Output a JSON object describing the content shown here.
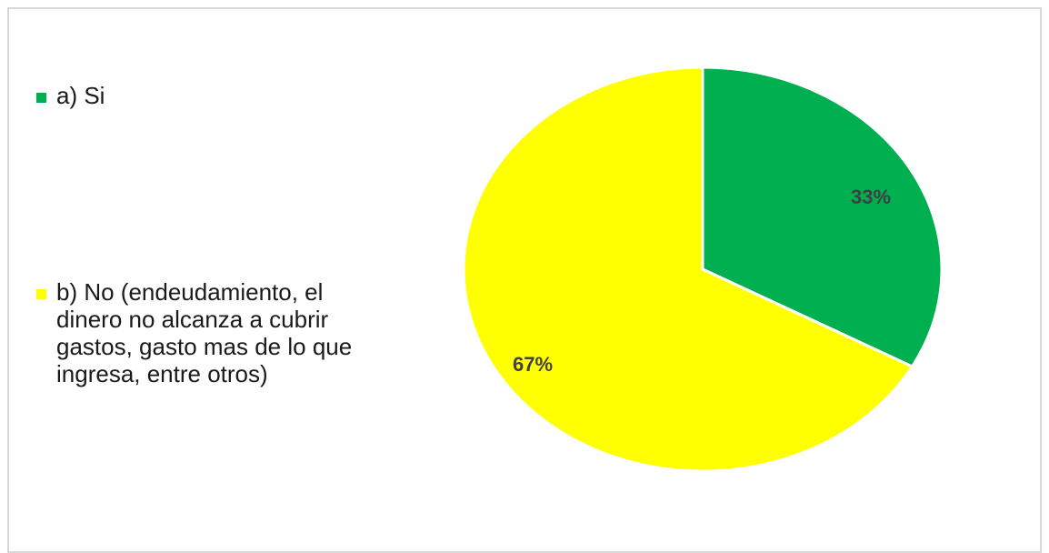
{
  "chart_data": {
    "type": "pie",
    "title": "",
    "legend_position": "left",
    "slices": [
      {
        "label": "a) Si",
        "value": 33,
        "display": "33%",
        "color": "#00b050"
      },
      {
        "label": "b) No (endeudamiento, el dinero no alcanza a cubrir gastos, gasto mas de lo que ingresa, entre otros)",
        "value": 67,
        "display": "67%",
        "color": "#ffff00"
      }
    ]
  }
}
